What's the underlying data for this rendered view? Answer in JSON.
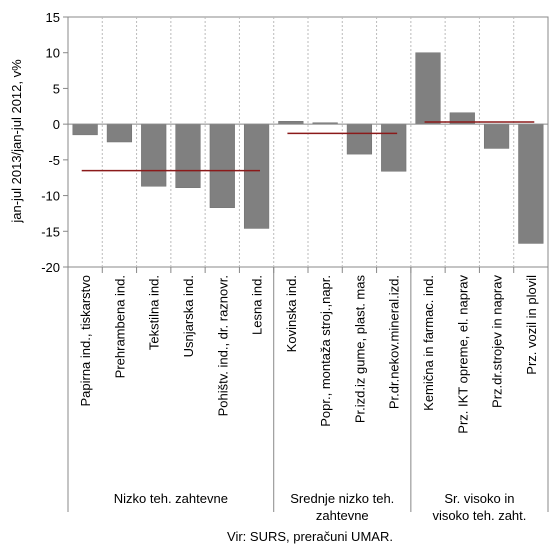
{
  "chart_data": {
    "type": "bar",
    "ylabel": "jan-jul 2013/jan-jul 2012, v%",
    "ylim": [
      -20,
      15
    ],
    "yticks": [
      15,
      10,
      5,
      0,
      -5,
      -10,
      -15,
      -20
    ],
    "grid": "vertical dashed separators",
    "categories": [
      "Papirna ind., tiskarstvo",
      "Prehrambena ind.",
      "Tekstilna ind.",
      "Usnjarska ind.",
      "Pohištv. ind., dr. raznovr.",
      "Lesna ind.",
      "Kovinska ind.",
      "Popr., montaža stroj.,napr.",
      "Pr.izd.iz gume, plast. mas",
      "Pr.dr.nekov.mineral.izd.",
      "Kemična in farmac. ind.",
      "Prz. IKT opreme, el. naprav",
      "Prz.dr.strojev in naprav",
      "Prz. vozil in plovil"
    ],
    "values": [
      -1.5,
      -2.5,
      -8.7,
      -8.9,
      -11.7,
      -14.6,
      0.4,
      0.2,
      -4.2,
      -6.6,
      10.0,
      1.6,
      -3.4,
      -16.7
    ],
    "groups": [
      {
        "label": "Nizko teh. zahtevne",
        "start": 0,
        "end": 5,
        "average": -6.5
      },
      {
        "label": "Srednje nizko teh. zahtevne",
        "start": 6,
        "end": 9,
        "average": -1.3
      },
      {
        "label": "Sr. visoko in visoko teh. zaht.",
        "start": 10,
        "end": 13,
        "average": 0.3
      }
    ],
    "bar_color": "#808080",
    "average_line_color": "#8B1A1A",
    "source": "Vir: SURS, preračuni UMAR."
  }
}
